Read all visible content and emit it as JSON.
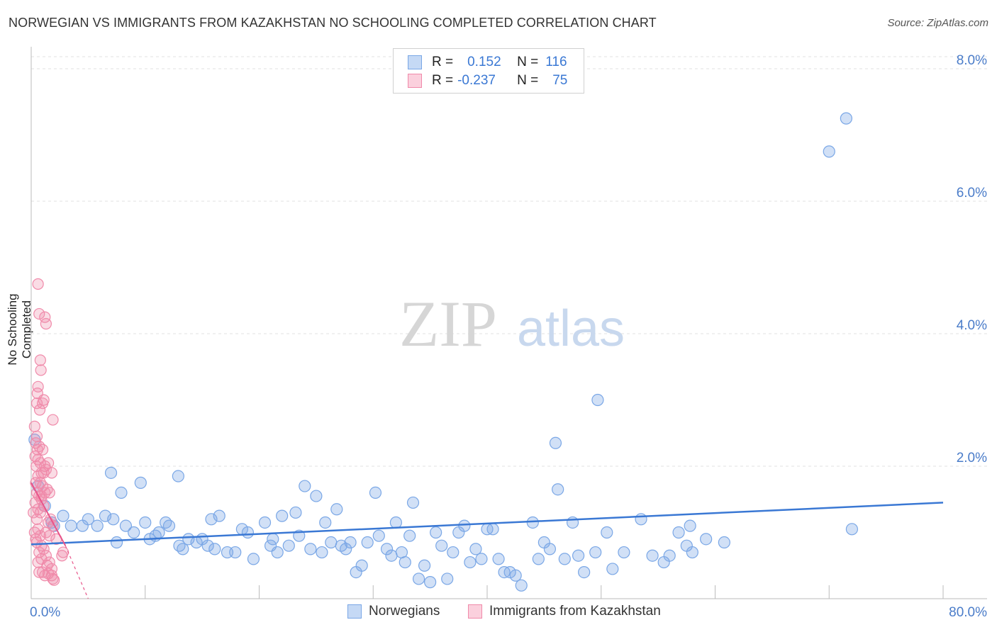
{
  "title": "NORWEGIAN VS IMMIGRANTS FROM KAZAKHSTAN NO SCHOOLING COMPLETED CORRELATION CHART",
  "source": "Source: ZipAtlas.com",
  "watermark": {
    "zip": "ZIP",
    "atlas": "atlas"
  },
  "colors": {
    "blue": "#7aa7e6",
    "blue_fill": "rgba(122,167,230,0.35)",
    "blue_line": "#3a78d4",
    "pink": "#f08aaa",
    "pink_fill": "rgba(240,138,170,0.3)",
    "pink_line": "#e8558a",
    "axis_text": "#4a7cc9"
  },
  "legend": {
    "r_label": "R =",
    "n_label": "N =",
    "series": [
      {
        "r": "0.152",
        "n": "116"
      },
      {
        "r": "-0.237",
        "n": "75"
      }
    ]
  },
  "chart_data": {
    "type": "scatter",
    "title": "NORWEGIAN VS IMMIGRANTS FROM KAZAKHSTAN NO SCHOOLING COMPLETED CORRELATION CHART",
    "xlabel": "",
    "ylabel": "No Schooling Completed",
    "xlim": [
      0,
      80
    ],
    "ylim": [
      0,
      8.0
    ],
    "x_tick_labels": [
      "0.0%",
      "80.0%"
    ],
    "y_ticks": [
      2.0,
      4.0,
      6.0,
      8.0
    ],
    "y_tick_labels": [
      "2.0%",
      "4.0%",
      "6.0%",
      "8.0%"
    ],
    "grid": true,
    "series": [
      {
        "name": "Norwegians",
        "trend": {
          "x": [
            0,
            80
          ],
          "y": [
            0.82,
            1.45
          ]
        },
        "points": [
          [
            0.3,
            2.4
          ],
          [
            0.6,
            1.7
          ],
          [
            1.2,
            1.4
          ],
          [
            2.0,
            1.1
          ],
          [
            2.8,
            1.25
          ],
          [
            3.5,
            1.1
          ],
          [
            4.5,
            1.1
          ],
          [
            5.0,
            1.2
          ],
          [
            5.8,
            1.1
          ],
          [
            6.5,
            1.25
          ],
          [
            7.2,
            1.2
          ],
          [
            7.0,
            1.9
          ],
          [
            7.5,
            0.85
          ],
          [
            8.3,
            1.1
          ],
          [
            7.9,
            1.6
          ],
          [
            9.0,
            1.0
          ],
          [
            9.6,
            1.75
          ],
          [
            10.0,
            1.15
          ],
          [
            10.4,
            0.9
          ],
          [
            10.9,
            0.95
          ],
          [
            11.2,
            1.0
          ],
          [
            11.8,
            1.15
          ],
          [
            12.1,
            1.1
          ],
          [
            12.9,
            1.85
          ],
          [
            13.0,
            0.8
          ],
          [
            13.3,
            0.75
          ],
          [
            13.8,
            0.9
          ],
          [
            14.5,
            0.85
          ],
          [
            15.0,
            0.9
          ],
          [
            15.5,
            0.8
          ],
          [
            15.8,
            1.2
          ],
          [
            16.1,
            0.75
          ],
          [
            16.5,
            1.25
          ],
          [
            17.2,
            0.7
          ],
          [
            17.9,
            0.7
          ],
          [
            18.5,
            1.05
          ],
          [
            19.0,
            1.0
          ],
          [
            19.5,
            0.6
          ],
          [
            20.5,
            1.15
          ],
          [
            21.0,
            0.8
          ],
          [
            21.2,
            0.9
          ],
          [
            21.6,
            0.7
          ],
          [
            22.0,
            1.25
          ],
          [
            22.6,
            0.8
          ],
          [
            23.2,
            1.3
          ],
          [
            23.5,
            0.95
          ],
          [
            24.0,
            1.7
          ],
          [
            24.5,
            0.75
          ],
          [
            25.0,
            1.55
          ],
          [
            25.5,
            0.7
          ],
          [
            25.8,
            1.15
          ],
          [
            26.3,
            0.85
          ],
          [
            26.8,
            1.35
          ],
          [
            27.2,
            0.8
          ],
          [
            27.6,
            0.75
          ],
          [
            28.0,
            0.85
          ],
          [
            28.5,
            0.4
          ],
          [
            29.0,
            0.5
          ],
          [
            29.5,
            0.85
          ],
          [
            30.2,
            1.6
          ],
          [
            30.5,
            0.95
          ],
          [
            31.2,
            0.75
          ],
          [
            31.6,
            0.65
          ],
          [
            32.0,
            1.15
          ],
          [
            32.5,
            0.7
          ],
          [
            32.8,
            0.55
          ],
          [
            33.2,
            0.95
          ],
          [
            33.5,
            1.45
          ],
          [
            34.0,
            0.3
          ],
          [
            34.5,
            0.5
          ],
          [
            35.0,
            0.25
          ],
          [
            35.5,
            1.0
          ],
          [
            36.0,
            0.8
          ],
          [
            36.5,
            0.3
          ],
          [
            37.0,
            0.7
          ],
          [
            37.5,
            1.0
          ],
          [
            38.0,
            1.1
          ],
          [
            38.5,
            0.55
          ],
          [
            39.0,
            0.75
          ],
          [
            39.5,
            0.6
          ],
          [
            40.0,
            1.05
          ],
          [
            40.5,
            1.05
          ],
          [
            41.0,
            0.6
          ],
          [
            41.5,
            0.4
          ],
          [
            42.0,
            0.4
          ],
          [
            42.5,
            0.35
          ],
          [
            43.0,
            0.2
          ],
          [
            44.0,
            1.15
          ],
          [
            44.5,
            0.6
          ],
          [
            45.0,
            0.85
          ],
          [
            45.5,
            0.75
          ],
          [
            46.0,
            2.35
          ],
          [
            46.2,
            1.65
          ],
          [
            46.8,
            0.6
          ],
          [
            47.5,
            1.15
          ],
          [
            48.0,
            0.65
          ],
          [
            48.5,
            0.4
          ],
          [
            49.5,
            0.7
          ],
          [
            49.7,
            3.0
          ],
          [
            50.5,
            1.0
          ],
          [
            51.0,
            0.45
          ],
          [
            52.0,
            0.7
          ],
          [
            53.5,
            1.2
          ],
          [
            54.5,
            0.65
          ],
          [
            55.5,
            0.55
          ],
          [
            56.0,
            0.65
          ],
          [
            56.8,
            1.0
          ],
          [
            57.5,
            0.8
          ],
          [
            58.0,
            0.7
          ],
          [
            57.8,
            1.1
          ],
          [
            59.2,
            0.9
          ],
          [
            60.8,
            0.85
          ],
          [
            70.0,
            6.75
          ],
          [
            71.5,
            7.25
          ],
          [
            72.0,
            1.05
          ],
          [
            1.8,
            1.15
          ]
        ]
      },
      {
        "name": "Immigrants from Kazakhstan",
        "trend": {
          "x": [
            0,
            3.0
          ],
          "y": [
            1.75,
            0.8
          ]
        },
        "trend_ext": {
          "x": [
            3.0,
            5.0
          ],
          "y": [
            0.8,
            0.0
          ]
        },
        "points": [
          [
            0.6,
            4.75
          ],
          [
            0.7,
            4.3
          ],
          [
            1.2,
            4.25
          ],
          [
            1.3,
            4.15
          ],
          [
            0.8,
            3.6
          ],
          [
            0.85,
            3.45
          ],
          [
            0.6,
            3.2
          ],
          [
            0.55,
            3.1
          ],
          [
            1.1,
            3.0
          ],
          [
            0.5,
            2.95
          ],
          [
            0.75,
            2.85
          ],
          [
            1.9,
            2.7
          ],
          [
            0.3,
            2.6
          ],
          [
            0.5,
            2.45
          ],
          [
            0.4,
            2.35
          ],
          [
            0.7,
            2.3
          ],
          [
            1.0,
            2.25
          ],
          [
            0.55,
            2.25
          ],
          [
            0.35,
            2.15
          ],
          [
            0.6,
            2.1
          ],
          [
            0.8,
            2.05
          ],
          [
            1.2,
            2.0
          ],
          [
            1.3,
            1.95
          ],
          [
            0.45,
            2.0
          ],
          [
            0.9,
            1.9
          ],
          [
            1.1,
            1.9
          ],
          [
            1.8,
            1.9
          ],
          [
            0.6,
            1.85
          ],
          [
            0.4,
            1.75
          ],
          [
            0.8,
            1.75
          ],
          [
            1.0,
            1.7
          ],
          [
            1.4,
            1.65
          ],
          [
            0.5,
            1.6
          ],
          [
            1.2,
            1.6
          ],
          [
            1.6,
            1.6
          ],
          [
            0.7,
            1.55
          ],
          [
            0.9,
            1.5
          ],
          [
            0.35,
            1.45
          ],
          [
            1.1,
            1.4
          ],
          [
            0.6,
            1.35
          ],
          [
            0.8,
            1.3
          ],
          [
            0.5,
            1.2
          ],
          [
            1.5,
            1.15
          ],
          [
            1.9,
            1.1
          ],
          [
            0.6,
            1.05
          ],
          [
            0.3,
            1.0
          ],
          [
            0.8,
            0.95
          ],
          [
            1.6,
            0.95
          ],
          [
            0.5,
            0.85
          ],
          [
            0.9,
            0.8
          ],
          [
            1.1,
            0.75
          ],
          [
            0.7,
            0.7
          ],
          [
            2.8,
            0.7
          ],
          [
            1.3,
            0.65
          ],
          [
            2.7,
            0.65
          ],
          [
            0.6,
            0.55
          ],
          [
            1.4,
            0.5
          ],
          [
            1.8,
            0.45
          ],
          [
            0.7,
            0.4
          ],
          [
            1.0,
            0.4
          ],
          [
            1.5,
            0.38
          ],
          [
            1.8,
            0.35
          ],
          [
            1.2,
            0.35
          ],
          [
            1.9,
            0.3
          ],
          [
            2.0,
            0.28
          ],
          [
            0.9,
            0.6
          ],
          [
            1.6,
            0.55
          ],
          [
            0.4,
            0.9
          ],
          [
            1.3,
            1.0
          ],
          [
            2.2,
            0.9
          ],
          [
            0.2,
            1.3
          ],
          [
            1.7,
            1.2
          ],
          [
            0.9,
            1.55
          ],
          [
            1.5,
            2.05
          ],
          [
            1.0,
            2.95
          ]
        ]
      }
    ]
  }
}
